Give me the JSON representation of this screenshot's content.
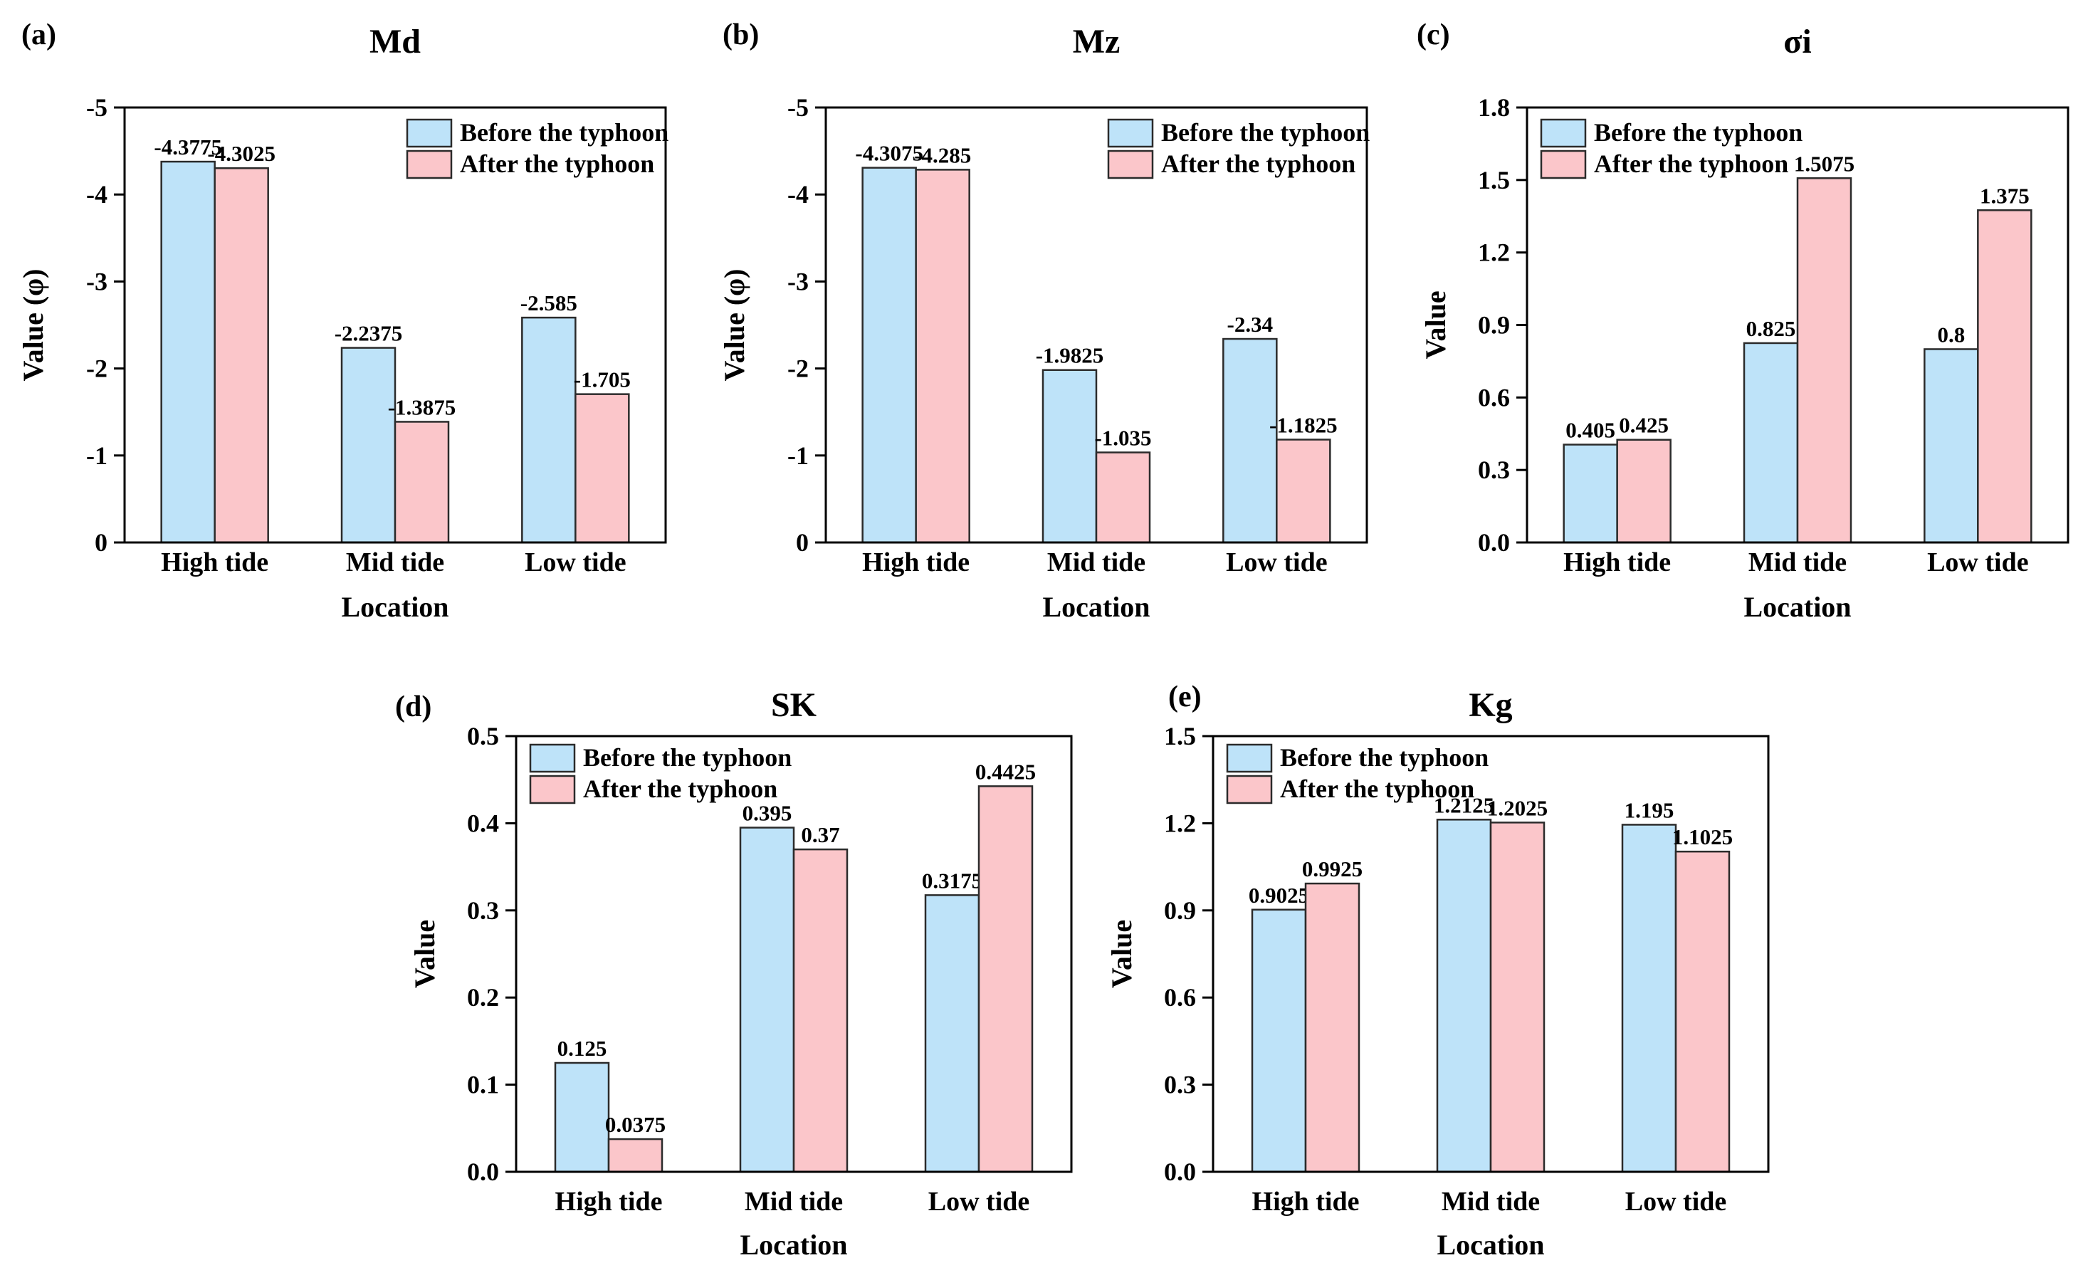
{
  "figure": {
    "background": "#ffffff",
    "location_categories": [
      "High tide",
      "Mid tide",
      "Low tide"
    ]
  },
  "colors": {
    "before": "#BEE3F9",
    "after": "#FBC6CA",
    "bar_edge": "#2b2b2b",
    "axis": "#000000",
    "text": "#000000"
  },
  "legend_labels": [
    "Before the typhoon",
    "After the typhoon"
  ],
  "chart_data": [
    {
      "type": "bar",
      "panel_label": "(a)",
      "title": "Md",
      "xlabel": "Location",
      "ylabel": "Value (φ)",
      "categories": [
        "High tide",
        "Mid tide",
        "Low tide"
      ],
      "series": [
        {
          "name": "Before the typhoon",
          "values": [
            -4.3775,
            -2.2375,
            -2.585
          ],
          "value_labels": [
            "-4.3775",
            "-2.2375",
            "-2.585"
          ]
        },
        {
          "name": "After the typhoon",
          "values": [
            -4.3025,
            -1.3875,
            -1.705
          ],
          "value_labels": [
            "-4.3025",
            "-1.3875",
            "-1.705"
          ]
        }
      ],
      "ylim": [
        0,
        -5
      ],
      "yticks": [
        {
          "v": 0,
          "label": "0"
        },
        {
          "v": -1,
          "label": "-1"
        },
        {
          "v": -2,
          "label": "-2"
        },
        {
          "v": -3,
          "label": "-3"
        },
        {
          "v": -4,
          "label": "-4"
        },
        {
          "v": -5,
          "label": "-5"
        }
      ],
      "legend_position": "top-right",
      "grid": false
    },
    {
      "type": "bar",
      "panel_label": "(b)",
      "title": "Mz",
      "xlabel": "Location",
      "ylabel": "Value (φ)",
      "categories": [
        "High tide",
        "Mid tide",
        "Low tide"
      ],
      "series": [
        {
          "name": "Before the typhoon",
          "values": [
            -4.3075,
            -1.9825,
            -2.34
          ],
          "value_labels": [
            "-4.3075",
            "-1.9825",
            "-2.34"
          ]
        },
        {
          "name": "After the typhoon",
          "values": [
            -4.285,
            -1.035,
            -1.1825
          ],
          "value_labels": [
            "-4.285",
            "-1.035",
            "-1.1825"
          ]
        }
      ],
      "ylim": [
        0,
        -5
      ],
      "yticks": [
        {
          "v": 0,
          "label": "0"
        },
        {
          "v": -1,
          "label": "-1"
        },
        {
          "v": -2,
          "label": "-2"
        },
        {
          "v": -3,
          "label": "-3"
        },
        {
          "v": -4,
          "label": "-4"
        },
        {
          "v": -5,
          "label": "-5"
        }
      ],
      "legend_position": "top-right",
      "grid": false
    },
    {
      "type": "bar",
      "panel_label": "(c)",
      "title": "σi",
      "xlabel": "Location",
      "ylabel": "Value",
      "categories": [
        "High tide",
        "Mid tide",
        "Low tide"
      ],
      "series": [
        {
          "name": "Before the typhoon",
          "values": [
            0.405,
            0.825,
            0.8
          ],
          "value_labels": [
            "0.405",
            "0.825",
            "0.8"
          ]
        },
        {
          "name": "After the typhoon",
          "values": [
            0.425,
            1.5075,
            1.375
          ],
          "value_labels": [
            "0.425",
            "1.5075",
            "1.375"
          ]
        }
      ],
      "ylim": [
        0,
        1.8
      ],
      "yticks": [
        {
          "v": 0,
          "label": "0.0"
        },
        {
          "v": 0.3,
          "label": "0.3"
        },
        {
          "v": 0.6,
          "label": "0.6"
        },
        {
          "v": 0.9,
          "label": "0.9"
        },
        {
          "v": 1.2,
          "label": "1.2"
        },
        {
          "v": 1.5,
          "label": "1.5"
        },
        {
          "v": 1.8,
          "label": "1.8"
        }
      ],
      "legend_position": "top-left",
      "grid": false
    },
    {
      "type": "bar",
      "panel_label": "(d)",
      "title": "SK",
      "xlabel": "Location",
      "ylabel": "Value",
      "categories": [
        "High tide",
        "Mid tide",
        "Low tide"
      ],
      "series": [
        {
          "name": "Before the typhoon",
          "values": [
            0.125,
            0.395,
            0.3175
          ],
          "value_labels": [
            "0.125",
            "0.395",
            "0.3175"
          ]
        },
        {
          "name": "After the typhoon",
          "values": [
            0.0375,
            0.37,
            0.4425
          ],
          "value_labels": [
            "0.0375",
            "0.37",
            "0.4425"
          ]
        }
      ],
      "ylim": [
        0,
        0.5
      ],
      "yticks": [
        {
          "v": 0,
          "label": "0.0"
        },
        {
          "v": 0.1,
          "label": "0.1"
        },
        {
          "v": 0.2,
          "label": "0.2"
        },
        {
          "v": 0.3,
          "label": "0.3"
        },
        {
          "v": 0.4,
          "label": "0.4"
        },
        {
          "v": 0.5,
          "label": "0.5"
        }
      ],
      "legend_position": "top-left",
      "grid": false
    },
    {
      "type": "bar",
      "panel_label": "(e)",
      "title": "Kg",
      "xlabel": "Location",
      "ylabel": "Value",
      "categories": [
        "High tide",
        "Mid tide",
        "Low tide"
      ],
      "series": [
        {
          "name": "Before the typhoon",
          "values": [
            0.9025,
            1.2125,
            1.195
          ],
          "value_labels": [
            "0.9025",
            "1.2125",
            "1.195"
          ]
        },
        {
          "name": "After the typhoon",
          "values": [
            0.9925,
            1.2025,
            1.1025
          ],
          "value_labels": [
            "0.9925",
            "1.2025",
            "1.1025"
          ]
        }
      ],
      "ylim": [
        0,
        1.5
      ],
      "yticks": [
        {
          "v": 0,
          "label": "0.0"
        },
        {
          "v": 0.3,
          "label": "0.3"
        },
        {
          "v": 0.6,
          "label": "0.6"
        },
        {
          "v": 0.9,
          "label": "0.9"
        },
        {
          "v": 1.2,
          "label": "1.2"
        },
        {
          "v": 1.5,
          "label": "1.5"
        }
      ],
      "legend_position": "top-left",
      "grid": false
    }
  ]
}
